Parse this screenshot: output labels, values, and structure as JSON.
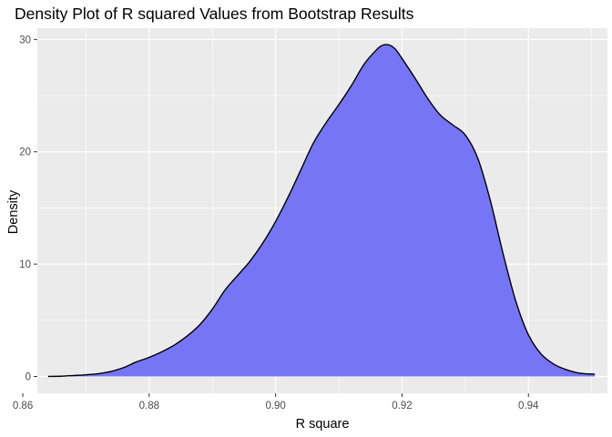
{
  "chart_data": {
    "type": "area",
    "title": "Density Plot of R squared Values from Bootstrap Results",
    "xlabel": "R square",
    "ylabel": "Density",
    "xlim": [
      0.8623,
      0.9525
    ],
    "ylim": [
      -1.5,
      31
    ],
    "x_ticks": [
      0.86,
      0.88,
      0.9,
      0.92,
      0.94
    ],
    "x_tick_labels": [
      "0.86",
      "0.88",
      "0.90",
      "0.92",
      "0.94"
    ],
    "y_ticks": [
      0,
      10,
      20,
      30
    ],
    "y_tick_labels": [
      "0",
      "10",
      "20",
      "30"
    ],
    "grid": true,
    "legend": "none",
    "fill_color": "#7575f5",
    "line_color": "#000000",
    "panel_background": "#ebebeb",
    "series": [
      {
        "x": [
          0.864,
          0.866,
          0.868,
          0.87,
          0.872,
          0.874,
          0.876,
          0.878,
          0.88,
          0.882,
          0.884,
          0.886,
          0.888,
          0.89,
          0.892,
          0.894,
          0.896,
          0.898,
          0.9,
          0.902,
          0.904,
          0.906,
          0.908,
          0.91,
          0.912,
          0.914,
          0.916,
          0.917,
          0.918,
          0.919,
          0.92,
          0.922,
          0.924,
          0.926,
          0.928,
          0.93,
          0.932,
          0.934,
          0.936,
          0.938,
          0.94,
          0.942,
          0.944,
          0.946,
          0.948,
          0.9505
        ],
        "values": [
          0.0,
          0.02,
          0.08,
          0.15,
          0.25,
          0.45,
          0.8,
          1.3,
          1.7,
          2.2,
          2.8,
          3.6,
          4.6,
          6.0,
          7.7,
          9.0,
          10.3,
          11.9,
          13.8,
          16.0,
          18.4,
          20.8,
          22.6,
          24.2,
          25.9,
          27.8,
          29.1,
          29.5,
          29.5,
          29.1,
          28.3,
          26.6,
          24.8,
          23.3,
          22.4,
          21.5,
          19.4,
          15.6,
          10.9,
          6.7,
          3.7,
          2.0,
          1.1,
          0.6,
          0.3,
          0.2
        ]
      }
    ]
  }
}
